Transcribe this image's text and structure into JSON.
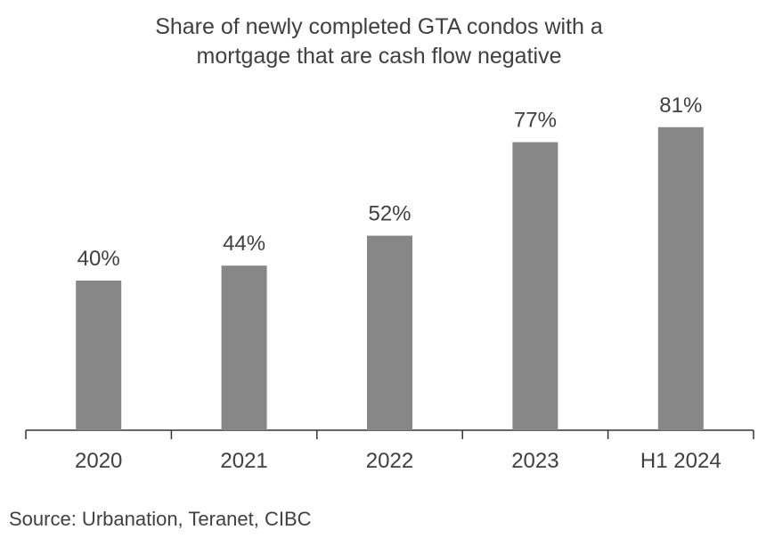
{
  "chart_data": {
    "type": "bar",
    "title_lines": [
      "Share of newly completed GTA condos with a",
      "mortgage that are cash flow negative"
    ],
    "categories": [
      "2020",
      "2021",
      "2022",
      "2023",
      "H1 2024"
    ],
    "values": [
      40,
      44,
      52,
      77,
      81
    ],
    "value_labels": [
      "40%",
      "44%",
      "52%",
      "77%",
      "81%"
    ],
    "unit": "%",
    "xlabel": "",
    "ylabel": "",
    "ylim": [
      0,
      100
    ],
    "grid": false,
    "bar_color": "#878787",
    "source": "Source: Urbanation, Teranet, CIBC"
  }
}
